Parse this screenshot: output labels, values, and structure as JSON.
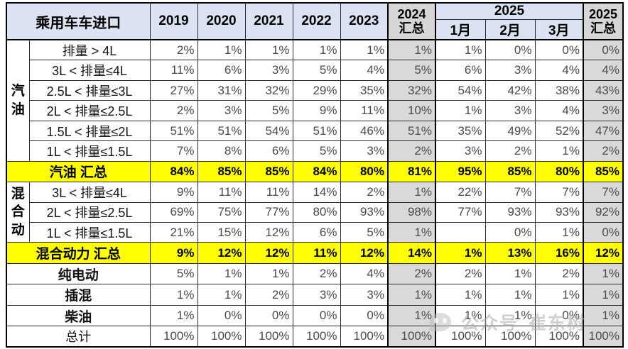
{
  "header": {
    "title": "乘用车车进口",
    "years": [
      "2019",
      "2020",
      "2021",
      "2022",
      "2023"
    ],
    "sum_2024": "2024\n汇总",
    "group_2025": "2025",
    "months": [
      "1月",
      "2月",
      "3月"
    ],
    "sum_2025": "2025\n汇总"
  },
  "watermark": {
    "icon": "panda-chat-icon",
    "text_left": "公众号",
    "text_right": "崔东树"
  },
  "colors": {
    "header_blue": "#dbe3f2",
    "summary_gray": "#d9d9d9",
    "highlight_yellow": "#ffff00",
    "grand_total_blue": "#d4ddef"
  },
  "chart_data": {
    "type": "table",
    "title": "乘用车车进口",
    "columns": [
      "2019",
      "2020",
      "2021",
      "2022",
      "2023",
      "2024汇总",
      "2025年1月",
      "2025年2月",
      "2025年3月",
      "2025汇总"
    ],
    "rows": [
      {
        "type": "data",
        "group": {
          "label": "汽\n油",
          "span": 6
        },
        "label": "排量 > 4L",
        "values": [
          "2%",
          "1%",
          "1%",
          "1%",
          "1%",
          "1%",
          "1%",
          "0%",
          "0%",
          "0%"
        ]
      },
      {
        "type": "data",
        "label": "3L < 排量≤4L",
        "values": [
          "11%",
          "6%",
          "3%",
          "5%",
          "4%",
          "5%",
          "6%",
          "3%",
          "4%",
          "4%"
        ]
      },
      {
        "type": "data",
        "label": "2.5L < 排量≤3L",
        "values": [
          "27%",
          "31%",
          "32%",
          "29%",
          "35%",
          "32%",
          "54%",
          "42%",
          "38%",
          "43%"
        ]
      },
      {
        "type": "data",
        "label": "2L < 排量≤2.5L",
        "values": [
          "2%",
          "3%",
          "5%",
          "9%",
          "11%",
          "10%",
          "1%",
          "3%",
          "4%",
          "3%"
        ]
      },
      {
        "type": "data",
        "label": "1.5L < 排量≤2L",
        "values": [
          "51%",
          "51%",
          "54%",
          "51%",
          "46%",
          "51%",
          "35%",
          "49%",
          "52%",
          "47%"
        ]
      },
      {
        "type": "data",
        "label": "1L < 排量≤1.5L",
        "values": [
          "7%",
          "8%",
          "6%",
          "5%",
          "3%",
          "2%",
          "3%",
          "2%",
          "1%",
          "2%"
        ]
      },
      {
        "type": "section_total",
        "label": "汽油 汇总",
        "values": [
          "84%",
          "85%",
          "85%",
          "84%",
          "80%",
          "81%",
          "95%",
          "85%",
          "80%",
          "85%"
        ]
      },
      {
        "type": "data",
        "group": {
          "label": "混\n合\n动",
          "span": 3
        },
        "label": "3L < 排量≤4L",
        "values": [
          "9%",
          "11%",
          "11%",
          "14%",
          "2%",
          "1%",
          "22%",
          "7%",
          "7%",
          "7%"
        ]
      },
      {
        "type": "data",
        "label": "2L < 排量≤2.5L",
        "values": [
          "69%",
          "75%",
          "77%",
          "80%",
          "93%",
          "98%",
          "77%",
          "93%",
          "93%",
          "92%"
        ]
      },
      {
        "type": "data",
        "label": "1L < 排量≤1.5L",
        "values": [
          "21%",
          "15%",
          "12%",
          "6%",
          "5%",
          "1%",
          "",
          "0%",
          "1%",
          "0%"
        ]
      },
      {
        "type": "section_total",
        "label": "混合动力 汇总",
        "values": [
          "9%",
          "12%",
          "12%",
          "11%",
          "12%",
          "14%",
          "1%",
          "13%",
          "16%",
          "12%"
        ]
      },
      {
        "type": "category",
        "label": "纯电动",
        "values": [
          "5%",
          "1%",
          "1%",
          "2%",
          "4%",
          "2%",
          "2%",
          "1%",
          "2%",
          "1%"
        ]
      },
      {
        "type": "category",
        "label": "插混",
        "values": [
          "1%",
          "1%",
          "2%",
          "3%",
          "3%",
          "1%",
          "1%",
          "1%",
          "1%",
          "1%"
        ]
      },
      {
        "type": "category",
        "label": "柴油",
        "values": [
          "1%",
          "0%",
          "0%",
          "0%",
          "0%",
          "1%",
          "1%",
          "1%",
          "0%",
          "1%"
        ]
      },
      {
        "type": "grand_total",
        "label": "总计",
        "values": [
          "100%",
          "100%",
          "100%",
          "100%",
          "100%",
          "100%",
          "100%",
          "100%",
          "100%",
          "100%"
        ]
      }
    ]
  }
}
